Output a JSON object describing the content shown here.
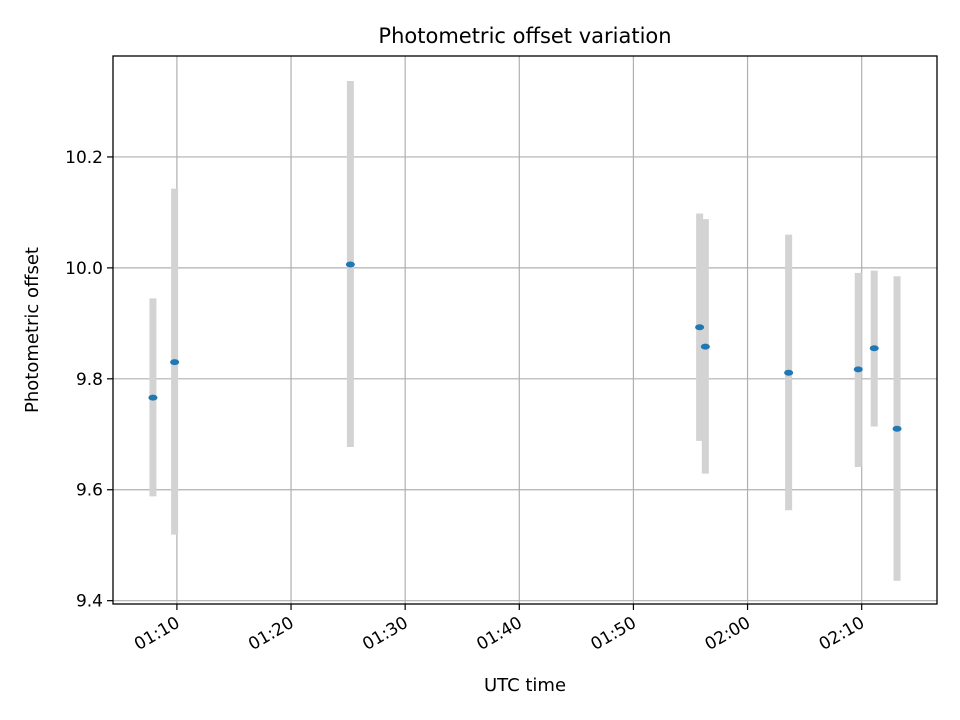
{
  "chart_data": {
    "type": "scatter",
    "title": "Photometric offset variation",
    "xlabel": "UTC time",
    "ylabel": "Photometric offset",
    "x_unit": "HH:MM",
    "xlim": [
      "01:04:24",
      "02:16:36"
    ],
    "ylim": [
      9.394,
      10.382
    ],
    "x_ticks": [
      "01:10",
      "01:20",
      "01:30",
      "01:40",
      "01:50",
      "02:00",
      "02:10"
    ],
    "y_ticks": [
      9.4,
      9.6,
      9.8,
      10.0,
      10.2
    ],
    "y_tick_labels": [
      "9.4",
      "9.6",
      "9.8",
      "10.0",
      "10.2"
    ],
    "grid": true,
    "point_color": "#1f77b4",
    "errorbar_color": "#d3d3d3",
    "points": [
      {
        "x": "01:07:54",
        "y": 9.766,
        "yerr_low": 9.588,
        "yerr_high": 9.945
      },
      {
        "x": "01:09:48",
        "y": 9.83,
        "yerr_low": 9.519,
        "yerr_high": 10.143
      },
      {
        "x": "01:25:12",
        "y": 10.006,
        "yerr_low": 9.677,
        "yerr_high": 10.337
      },
      {
        "x": "01:55:48",
        "y": 9.893,
        "yerr_low": 9.688,
        "yerr_high": 10.098
      },
      {
        "x": "01:56:18",
        "y": 9.858,
        "yerr_low": 9.629,
        "yerr_high": 10.088
      },
      {
        "x": "02:03:36",
        "y": 9.811,
        "yerr_low": 9.563,
        "yerr_high": 10.06
      },
      {
        "x": "02:09:42",
        "y": 9.817,
        "yerr_low": 9.641,
        "yerr_high": 9.991
      },
      {
        "x": "02:11:06",
        "y": 9.855,
        "yerr_low": 9.714,
        "yerr_high": 9.995
      },
      {
        "x": "02:13:06",
        "y": 9.71,
        "yerr_low": 9.436,
        "yerr_high": 9.985
      }
    ]
  }
}
